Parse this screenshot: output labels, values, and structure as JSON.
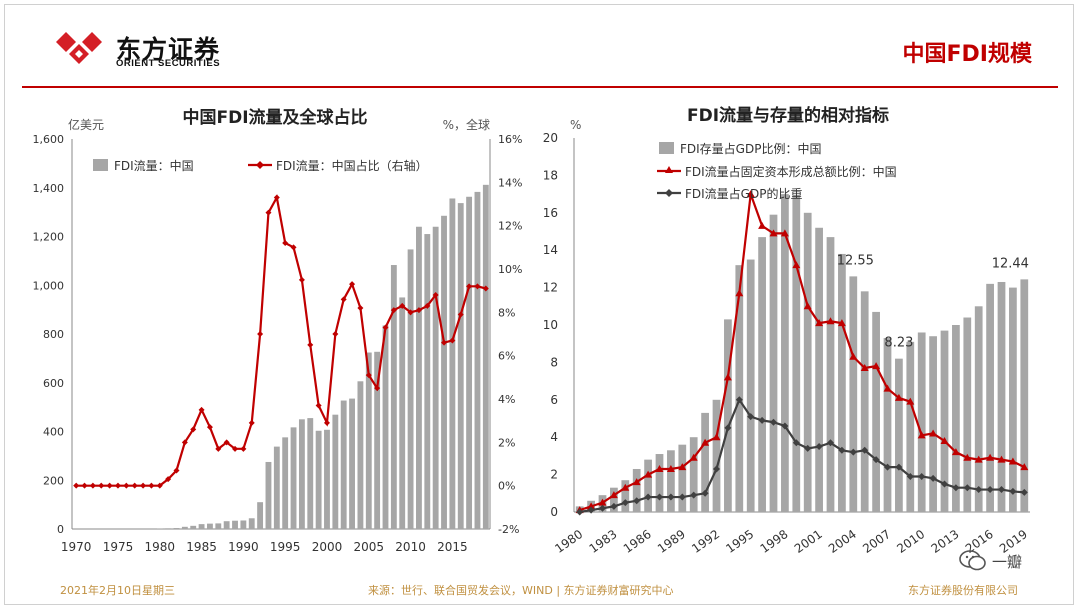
{
  "header": {
    "logo_cn": "东方证券",
    "logo_en": "ORIENT SECURITIES",
    "page_title": "中国FDI规模"
  },
  "footer": {
    "date": "2021年2月10日星期三",
    "source": "来源：世行、联合国贸发会议，WIND | 东方证券财富研究中心",
    "company": "东方证券股份有限公司"
  },
  "watermark": {
    "text": "一瓣"
  },
  "colors": {
    "bar": "#a6a6a6",
    "red": "#c00000",
    "dark": "#404040",
    "accent": "#c00000"
  },
  "chart_data": [
    {
      "type": "bar",
      "title": "中国FDI流量及全球占比",
      "ylabel_left": "亿美元",
      "ylabel_right": "%，全球",
      "ylim_left": [
        0,
        1600
      ],
      "ylim_right": [
        -2,
        16
      ],
      "yticks_left": [
        "0",
        "200",
        "400",
        "600",
        "800",
        "1,000",
        "1,200",
        "1,400",
        "1,600"
      ],
      "yticks_right": [
        "-2%",
        "0%",
        "2%",
        "4%",
        "6%",
        "8%",
        "10%",
        "12%",
        "14%",
        "16%"
      ],
      "xticks": [
        "1970",
        "1975",
        "1980",
        "1985",
        "1990",
        "1995",
        "2000",
        "2005",
        "2010",
        "2015"
      ],
      "legend_position": "top-left",
      "x": [
        1970,
        1971,
        1972,
        1973,
        1974,
        1975,
        1976,
        1977,
        1978,
        1979,
        1980,
        1981,
        1982,
        1983,
        1984,
        1985,
        1986,
        1987,
        1988,
        1989,
        1990,
        1991,
        1992,
        1993,
        1994,
        1995,
        1996,
        1997,
        1998,
        1999,
        2000,
        2001,
        2002,
        2003,
        2004,
        2005,
        2006,
        2007,
        2008,
        2009,
        2010,
        2011,
        2012,
        2013,
        2014,
        2015,
        2016,
        2017,
        2018,
        2019
      ],
      "series": [
        {
          "name": "FDI流量：中国",
          "axis": "left",
          "kind": "bar",
          "values": [
            0,
            0,
            0,
            0,
            0,
            0,
            0,
            0,
            0,
            0,
            1,
            3,
            4,
            9,
            13,
            20,
            22,
            23,
            32,
            34,
            35,
            44,
            110,
            275,
            338,
            376,
            417,
            450,
            455,
            403,
            407,
            469,
            527,
            535,
            606,
            724,
            727,
            835,
            1083,
            950,
            1147,
            1240,
            1210,
            1240,
            1285,
            1356,
            1337,
            1363,
            1383,
            1412
          ]
        },
        {
          "name": "FDI流量：中国占比（右轴）",
          "axis": "right",
          "kind": "line",
          "values": [
            0,
            0,
            0,
            0,
            0,
            0,
            0,
            0,
            0,
            0,
            0,
            0.3,
            0.7,
            2.0,
            2.6,
            3.5,
            2.7,
            1.7,
            2.0,
            1.7,
            1.7,
            2.9,
            7.0,
            12.6,
            13.3,
            11.2,
            11.0,
            9.5,
            6.5,
            3.7,
            2.9,
            7.0,
            8.6,
            9.3,
            8.2,
            5.1,
            4.5,
            7.3,
            8.1,
            8.3,
            8.0,
            8.1,
            8.3,
            8.8,
            6.6,
            6.7,
            7.9,
            9.2,
            9.2,
            9.1
          ]
        }
      ]
    },
    {
      "type": "bar",
      "title": "FDI流量与存量的相对指标",
      "ylabel": "%",
      "ylim": [
        0,
        20
      ],
      "yticks": [
        "0",
        "2",
        "4",
        "6",
        "8",
        "10",
        "12",
        "14",
        "16",
        "18",
        "20"
      ],
      "xticks": [
        "1980",
        "1983",
        "1986",
        "1989",
        "1992",
        "1995",
        "1998",
        "2001",
        "2004",
        "2007",
        "2010",
        "2013",
        "2016",
        "2019"
      ],
      "legend_position": "top-left",
      "annotations": [
        "12.55",
        "8.23",
        "12.44"
      ],
      "x": [
        1980,
        1981,
        1982,
        1983,
        1984,
        1985,
        1986,
        1987,
        1988,
        1989,
        1990,
        1991,
        1992,
        1993,
        1994,
        1995,
        1996,
        1997,
        1998,
        1999,
        2000,
        2001,
        2002,
        2003,
        2004,
        2005,
        2006,
        2007,
        2008,
        2009,
        2010,
        2011,
        2012,
        2013,
        2014,
        2015,
        2016,
        2017,
        2018,
        2019
      ],
      "series": [
        {
          "name": "FDI存量占GDP比例：中国",
          "kind": "bar",
          "values": [
            0.3,
            0.6,
            0.9,
            1.3,
            1.7,
            2.3,
            2.8,
            3.1,
            3.3,
            3.6,
            4.0,
            5.3,
            6.0,
            10.3,
            13.2,
            13.5,
            14.7,
            15.9,
            17.0,
            16.9,
            16.0,
            15.2,
            14.7,
            13.8,
            12.6,
            11.8,
            10.7,
            9.3,
            8.2,
            9.1,
            9.6,
            9.4,
            9.7,
            10.0,
            10.4,
            11.0,
            12.2,
            12.3,
            12.0,
            12.44
          ]
        },
        {
          "name": "FDI流量占固定资本形成总额比例：中国",
          "kind": "line",
          "values": [
            0.1,
            0.3,
            0.5,
            0.9,
            1.3,
            1.6,
            2.0,
            2.3,
            2.3,
            2.4,
            2.9,
            3.7,
            4.0,
            7.2,
            11.7,
            17.0,
            15.3,
            14.9,
            14.9,
            13.2,
            11.0,
            10.1,
            10.2,
            10.1,
            8.3,
            7.7,
            7.8,
            6.6,
            6.1,
            5.9,
            4.1,
            4.2,
            3.8,
            3.2,
            2.9,
            2.8,
            2.9,
            2.8,
            2.7,
            2.4
          ]
        },
        {
          "name": "FDI流量占GDP的比重",
          "kind": "line",
          "values": [
            0.0,
            0.1,
            0.2,
            0.3,
            0.5,
            0.6,
            0.8,
            0.8,
            0.8,
            0.8,
            0.9,
            1.0,
            2.3,
            4.5,
            6.0,
            5.1,
            4.9,
            4.8,
            4.6,
            3.7,
            3.4,
            3.5,
            3.7,
            3.3,
            3.2,
            3.3,
            2.8,
            2.4,
            2.4,
            1.9,
            1.9,
            1.8,
            1.5,
            1.3,
            1.3,
            1.2,
            1.2,
            1.2,
            1.1,
            1.05
          ]
        }
      ]
    }
  ]
}
